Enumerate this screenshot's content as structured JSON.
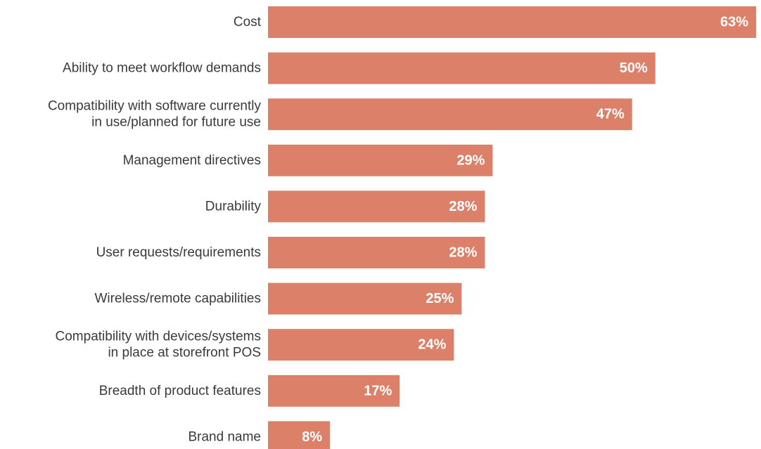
{
  "chart_data": {
    "type": "bar",
    "orientation": "horizontal",
    "categories": [
      [
        "Cost"
      ],
      [
        "Ability to meet workflow demands"
      ],
      [
        "Compatibility with software currently",
        "in use/planned for future use"
      ],
      [
        "Management directives"
      ],
      [
        "Durability"
      ],
      [
        "User requests/requirements"
      ],
      [
        "Wireless/remote capabilities"
      ],
      [
        "Compatibility with devices/systems",
        "in place at storefront POS"
      ],
      [
        "Breadth of product features"
      ],
      [
        "Brand name"
      ]
    ],
    "values": [
      63,
      50,
      47,
      29,
      28,
      28,
      25,
      24,
      17,
      8
    ],
    "value_labels": [
      "63%",
      "50%",
      "47%",
      "29%",
      "28%",
      "28%",
      "25%",
      "24%",
      "17%",
      "8%"
    ],
    "title": "",
    "xlabel": "",
    "ylabel": "",
    "xlim": [
      0,
      63
    ],
    "grid": false,
    "bar_color": "#dc806a",
    "value_label_color": "#ffffff",
    "category_label_color": "#3a3a3a"
  }
}
